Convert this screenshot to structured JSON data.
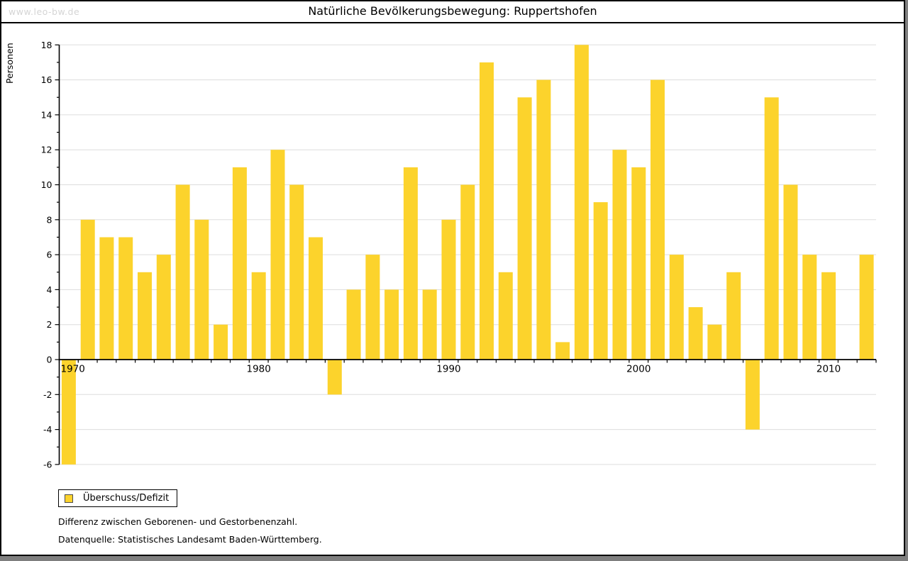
{
  "page": {
    "watermark": "www.leo-bw.de",
    "title": "Natürliche Bevölkerungsbewegung: Ruppertshofen"
  },
  "legend": {
    "label": "Überschuss/Defizit"
  },
  "footnotes": {
    "definition": "Differenz zwischen Geborenen- und Gestorbenenzahl.",
    "source": "Datenquelle: Statistisches Landesamt Baden-Württemberg."
  },
  "chart_data": {
    "type": "bar",
    "title": "Natürliche Bevölkerungsbewegung: Ruppertshofen",
    "xlabel": "",
    "ylabel": "Personen",
    "series_name": "Überschuss/Defizit",
    "ylim": [
      -6,
      18
    ],
    "y_ticks": [
      -6,
      -4,
      -2,
      0,
      2,
      4,
      6,
      8,
      10,
      12,
      14,
      16,
      18
    ],
    "grid": true,
    "legend_position": "bottom-left",
    "x_decade_labels": [
      1970,
      1980,
      1990,
      2000,
      2010
    ],
    "x": [
      1970,
      1971,
      1972,
      1973,
      1974,
      1975,
      1976,
      1977,
      1978,
      1979,
      1980,
      1981,
      1982,
      1983,
      1984,
      1985,
      1986,
      1987,
      1988,
      1989,
      1990,
      1991,
      1992,
      1993,
      1994,
      1995,
      1996,
      1997,
      1998,
      1999,
      2000,
      2001,
      2002,
      2003,
      2004,
      2005,
      2006,
      2007,
      2008,
      2009,
      2010,
      2011,
      2012
    ],
    "values": [
      -6,
      8,
      7,
      7,
      5,
      6,
      10,
      8,
      2,
      11,
      5,
      12,
      10,
      7,
      -2,
      4,
      6,
      4,
      11,
      4,
      8,
      10,
      17,
      5,
      15,
      16,
      1,
      18,
      9,
      12,
      11,
      16,
      6,
      3,
      2,
      5,
      -4,
      15,
      10,
      6,
      5,
      0,
      6
    ],
    "colors": {
      "bar": "#fcd32c",
      "grid": "#dddddd",
      "axis": "#000000"
    }
  }
}
